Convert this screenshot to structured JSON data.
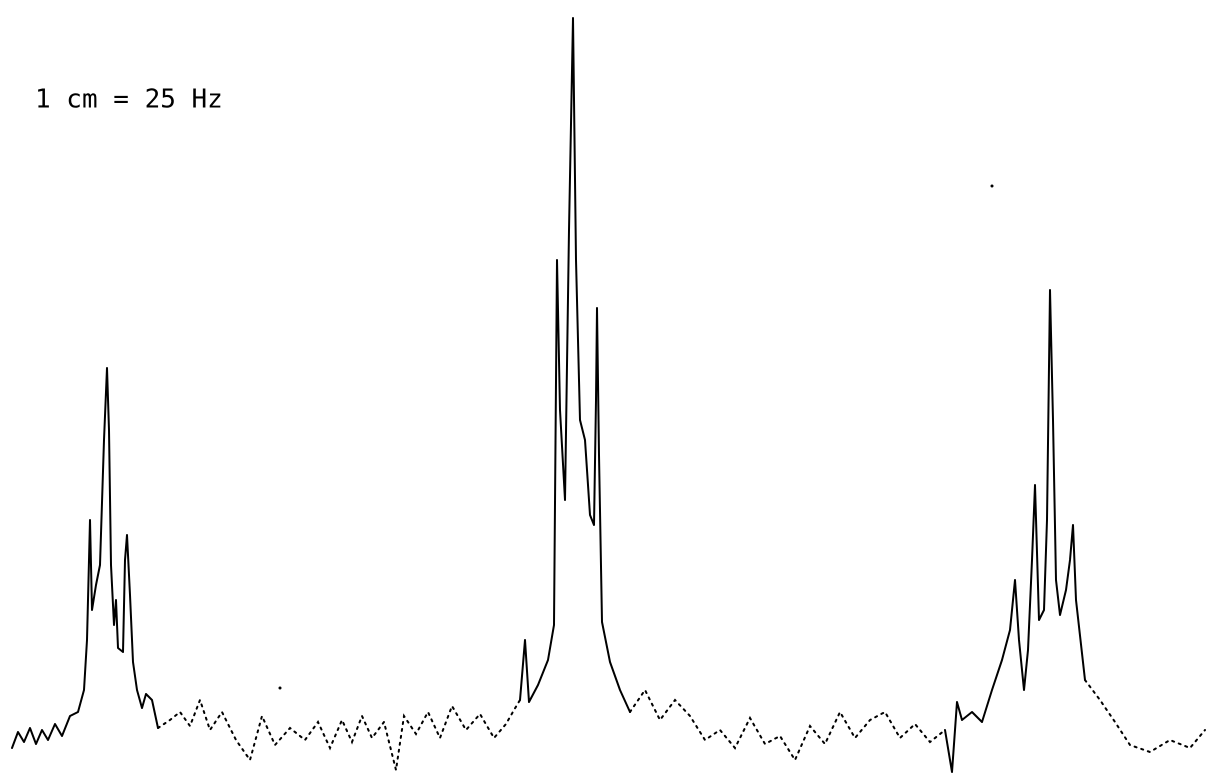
{
  "figure": {
    "scale_label": "1 cm = 25 Hz"
  }
}
